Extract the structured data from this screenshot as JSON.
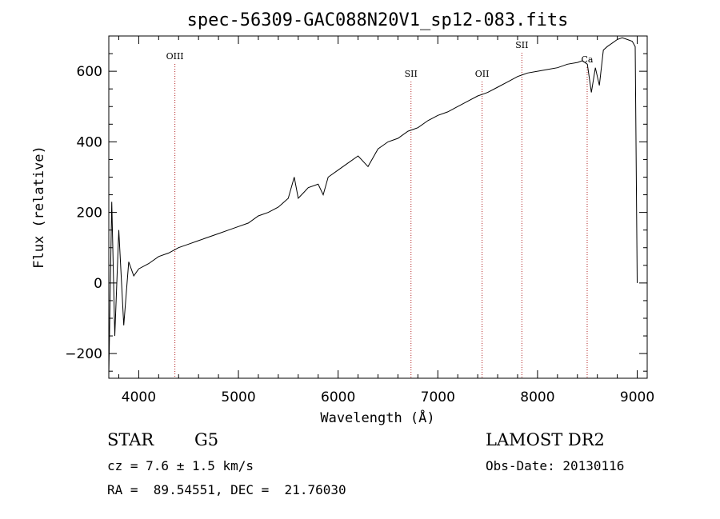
{
  "chart_data": {
    "type": "line",
    "title": "spec-56309-GAC088N20V1_sp12-083.fits",
    "xlabel": "Wavelength (Å)",
    "ylabel": "Flux (relative)",
    "xlim": [
      3700,
      9100
    ],
    "ylim": [
      -270,
      700
    ],
    "xticks": [
      4000,
      5000,
      6000,
      7000,
      8000,
      9000
    ],
    "yticks": [
      -200,
      0,
      200,
      400,
      600
    ],
    "grid": false,
    "series": [
      {
        "x": [
          3700,
          3730,
          3760,
          3800,
          3850,
          3900,
          3950,
          4000,
          4100,
          4200,
          4300,
          4400,
          4500,
          4600,
          4700,
          4800,
          4900,
          5000,
          5100,
          5200,
          5300,
          5400,
          5500,
          5560,
          5600,
          5700,
          5800,
          5850,
          5900,
          6000,
          6100,
          6200,
          6300,
          6400,
          6500,
          6600,
          6700,
          6800,
          6900,
          7000,
          7100,
          7200,
          7300,
          7400,
          7450,
          7500,
          7600,
          7700,
          7800,
          7850,
          7900,
          8000,
          8100,
          8200,
          8300,
          8400,
          8450,
          8500,
          8540,
          8580,
          8620,
          8660,
          8700,
          8750,
          8800,
          8850,
          8900,
          8950,
          8980,
          9000
        ],
        "y": [
          -260,
          230,
          -150,
          150,
          -120,
          60,
          20,
          40,
          55,
          75,
          85,
          100,
          110,
          120,
          130,
          140,
          150,
          160,
          170,
          190,
          200,
          215,
          240,
          300,
          240,
          270,
          280,
          250,
          300,
          320,
          340,
          360,
          330,
          380,
          400,
          410,
          430,
          440,
          460,
          475,
          485,
          500,
          515,
          530,
          535,
          540,
          555,
          570,
          585,
          590,
          595,
          600,
          605,
          610,
          620,
          625,
          630,
          620,
          540,
          610,
          560,
          660,
          670,
          680,
          690,
          695,
          690,
          685,
          670,
          0
        ]
      }
    ],
    "spectral_lines": [
      {
        "label": "OIII",
        "x": 4363
      },
      {
        "label": "SII",
        "x": 6731
      },
      {
        "label": "OII",
        "x": 7444
      },
      {
        "label": "SII",
        "x": 7843
      },
      {
        "label": "Ca",
        "x": 8498
      }
    ],
    "line_color": "#000000",
    "marker_color": "#b22222"
  },
  "info": {
    "class": "STAR",
    "subclass": "G5",
    "cz": "cz = 7.6 ± 1.5 km/s",
    "radec": "RA =  89.54551, DEC =  21.76030",
    "survey": "LAMOST DR2",
    "obsdate": "Obs-Date: 20130116"
  }
}
